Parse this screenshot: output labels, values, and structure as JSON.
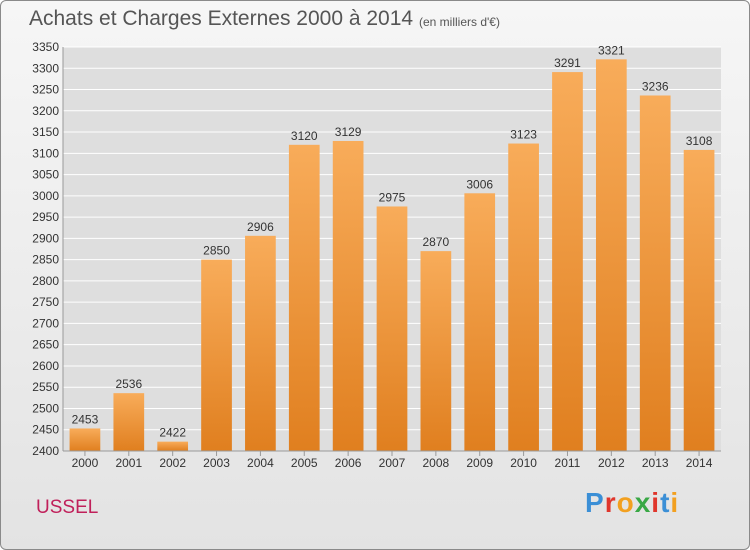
{
  "title": "Achats et Charges Externes 2000 à 2014",
  "unit_note": "(en milliers d'€)",
  "place_name": "USSEL",
  "logo": {
    "text": "Proxiti",
    "letter_colors": [
      "#3b8fd6",
      "#e0362c",
      "#f2a020",
      "#39a845",
      "#e0362c",
      "#3b8fd6",
      "#f2a020"
    ]
  },
  "colors": {
    "bar_top": "#f8ac5a",
    "bar_bottom": "#e07f1f",
    "grid": "#ffffff",
    "plot_background": "#dedede",
    "text": "#333333"
  },
  "chart_data": {
    "type": "bar",
    "title": "Achats et Charges Externes 2000 à 2014",
    "subtitle": "(en milliers d'€)",
    "categories": [
      "2000",
      "2001",
      "2002",
      "2003",
      "2004",
      "2005",
      "2006",
      "2007",
      "2008",
      "2009",
      "2010",
      "2011",
      "2012",
      "2013",
      "2014"
    ],
    "values": [
      2453,
      2536,
      2422,
      2850,
      2906,
      3120,
      3129,
      2975,
      2870,
      3006,
      3123,
      3291,
      3321,
      3236,
      3108
    ],
    "ylim": [
      2400,
      3350
    ],
    "yticks": [
      2400,
      2450,
      2500,
      2550,
      2600,
      2650,
      2700,
      2750,
      2800,
      2850,
      2900,
      2950,
      3000,
      3050,
      3100,
      3150,
      3200,
      3250,
      3300,
      3350
    ],
    "grid": true,
    "data_labels": true
  }
}
